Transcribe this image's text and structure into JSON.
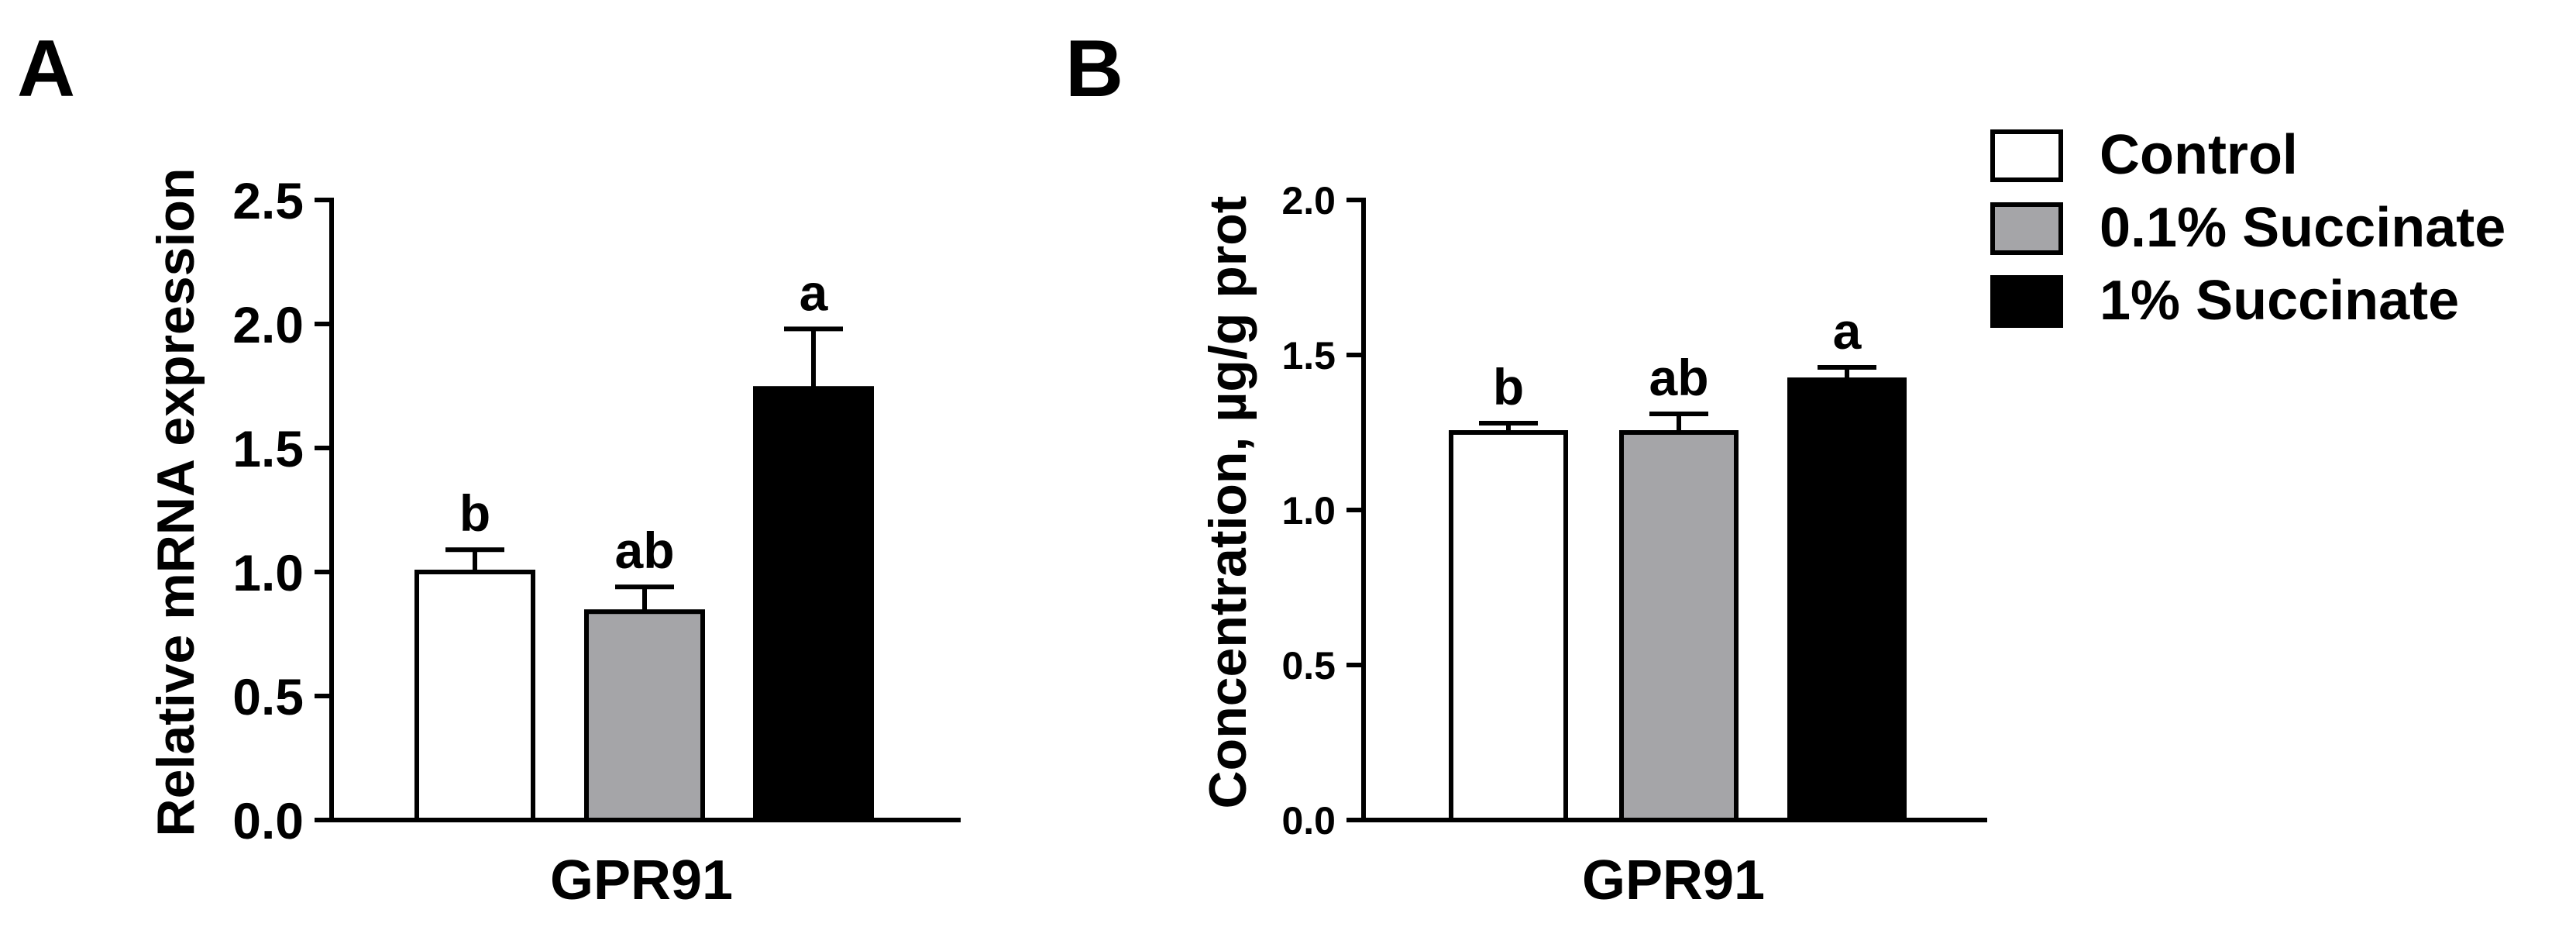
{
  "chart_data": [
    {
      "panel": "A",
      "type": "bar",
      "title": "",
      "xlabel": "GPR91",
      "ylabel": "Relative mRNA expression",
      "ylim": [
        0,
        2.5
      ],
      "yticks": [
        "0.0",
        "0.5",
        "1.0",
        "1.5",
        "2.0",
        "2.5"
      ],
      "categories": [
        "GPR91"
      ],
      "series": [
        {
          "name": "Control",
          "values": [
            1.0
          ],
          "error": [
            0.09
          ],
          "label": "b"
        },
        {
          "name": "0.1% Succinate",
          "values": [
            0.84
          ],
          "error": [
            0.1
          ],
          "label": "ab"
        },
        {
          "name": "1% Succinate",
          "values": [
            1.74
          ],
          "error": [
            0.24
          ],
          "label": "a"
        }
      ]
    },
    {
      "panel": "B",
      "type": "bar",
      "title": "",
      "xlabel": "GPR91",
      "ylabel": "Concentration, µg/g prot",
      "ylim": [
        0,
        2.0
      ],
      "yticks": [
        "0.0",
        "0.5",
        "1.0",
        "1.5",
        "2.0"
      ],
      "categories": [
        "GPR91"
      ],
      "series": [
        {
          "name": "Control",
          "values": [
            1.25
          ],
          "error": [
            0.03
          ],
          "label": "b"
        },
        {
          "name": "0.1% Succinate",
          "values": [
            1.25
          ],
          "error": [
            0.06
          ],
          "label": "ab"
        },
        {
          "name": "1% Succinate",
          "values": [
            1.42
          ],
          "error": [
            0.04
          ],
          "label": "a"
        }
      ]
    }
  ],
  "legend": {
    "items": [
      {
        "label": "Control",
        "color": "#ffffff"
      },
      {
        "label": "0.1% Succinate",
        "color": "#a5a5a8"
      },
      {
        "label": "1% Succinate",
        "color": "#000000"
      }
    ]
  },
  "colors": {
    "control": "#ffffff",
    "low": "#a5a5a8",
    "high": "#000000",
    "stroke": "#000000"
  }
}
